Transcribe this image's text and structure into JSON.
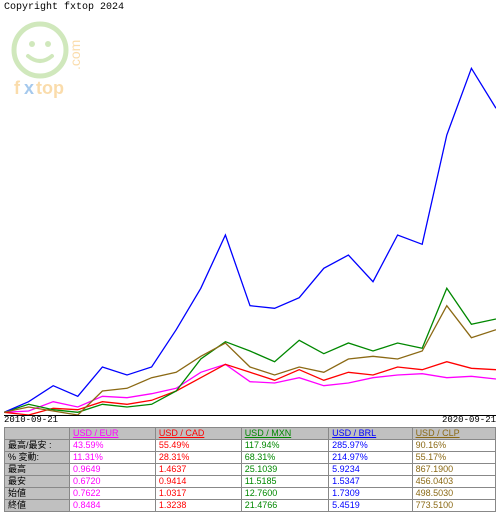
{
  "copyright": "Copyright fxtop 2024",
  "logo": {
    "text_top": "fxtop",
    "text_side": ".com",
    "face_color": "#7bc043",
    "text_color": "#f39c12"
  },
  "chart": {
    "type": "line",
    "x_start": "2010-09-21",
    "x_end": "2020-09-21",
    "background_color": "#ffffff",
    "x_range": [
      0,
      100
    ],
    "y_range": [
      0,
      300
    ],
    "series": [
      {
        "name": "USD/EUR",
        "color": "#ff00ff",
        "points": [
          [
            0,
            2
          ],
          [
            5,
            3
          ],
          [
            10,
            10
          ],
          [
            15,
            6
          ],
          [
            20,
            14
          ],
          [
            25,
            13
          ],
          [
            30,
            16
          ],
          [
            35,
            20
          ],
          [
            40,
            32
          ],
          [
            45,
            38
          ],
          [
            50,
            25
          ],
          [
            55,
            24
          ],
          [
            60,
            28
          ],
          [
            65,
            22
          ],
          [
            70,
            24
          ],
          [
            75,
            28
          ],
          [
            80,
            30
          ],
          [
            85,
            31
          ],
          [
            90,
            28
          ],
          [
            95,
            29
          ],
          [
            100,
            27
          ]
        ]
      },
      {
        "name": "USD/CAD",
        "color": "#ff0000",
        "points": [
          [
            0,
            2
          ],
          [
            5,
            0
          ],
          [
            10,
            5
          ],
          [
            15,
            4
          ],
          [
            20,
            10
          ],
          [
            25,
            8
          ],
          [
            30,
            11
          ],
          [
            35,
            18
          ],
          [
            40,
            28
          ],
          [
            45,
            38
          ],
          [
            50,
            32
          ],
          [
            55,
            26
          ],
          [
            60,
            34
          ],
          [
            65,
            26
          ],
          [
            70,
            32
          ],
          [
            75,
            30
          ],
          [
            80,
            36
          ],
          [
            85,
            34
          ],
          [
            90,
            40
          ],
          [
            95,
            35
          ],
          [
            100,
            34
          ]
        ]
      },
      {
        "name": "USD/MXN",
        "color": "#008800",
        "points": [
          [
            0,
            2
          ],
          [
            5,
            8
          ],
          [
            10,
            4
          ],
          [
            15,
            2
          ],
          [
            20,
            8
          ],
          [
            25,
            6
          ],
          [
            30,
            8
          ],
          [
            35,
            18
          ],
          [
            40,
            42
          ],
          [
            45,
            55
          ],
          [
            50,
            48
          ],
          [
            55,
            40
          ],
          [
            60,
            56
          ],
          [
            65,
            46
          ],
          [
            70,
            54
          ],
          [
            75,
            48
          ],
          [
            80,
            54
          ],
          [
            85,
            50
          ],
          [
            90,
            95
          ],
          [
            95,
            68
          ],
          [
            100,
            72
          ]
        ]
      },
      {
        "name": "USD/BRL",
        "color": "#0000ff",
        "points": [
          [
            0,
            2
          ],
          [
            5,
            10
          ],
          [
            10,
            22
          ],
          [
            15,
            14
          ],
          [
            20,
            36
          ],
          [
            25,
            30
          ],
          [
            30,
            36
          ],
          [
            35,
            64
          ],
          [
            40,
            95
          ],
          [
            45,
            135
          ],
          [
            50,
            82
          ],
          [
            55,
            80
          ],
          [
            60,
            88
          ],
          [
            65,
            110
          ],
          [
            70,
            120
          ],
          [
            75,
            100
          ],
          [
            80,
            135
          ],
          [
            85,
            128
          ],
          [
            90,
            210
          ],
          [
            95,
            260
          ],
          [
            100,
            230
          ]
        ]
      },
      {
        "name": "USD/CLP",
        "color": "#8b6914",
        "points": [
          [
            0,
            2
          ],
          [
            5,
            6
          ],
          [
            10,
            3
          ],
          [
            15,
            0
          ],
          [
            20,
            18
          ],
          [
            25,
            20
          ],
          [
            30,
            28
          ],
          [
            35,
            32
          ],
          [
            40,
            44
          ],
          [
            45,
            54
          ],
          [
            50,
            36
          ],
          [
            55,
            30
          ],
          [
            60,
            36
          ],
          [
            65,
            32
          ],
          [
            70,
            42
          ],
          [
            75,
            44
          ],
          [
            80,
            42
          ],
          [
            85,
            48
          ],
          [
            90,
            82
          ],
          [
            95,
            58
          ],
          [
            100,
            64
          ]
        ]
      }
    ]
  },
  "table": {
    "row_labels": [
      "",
      "最高/最安 :",
      "% 変動:",
      "最高",
      "最安",
      "始値",
      "終値"
    ],
    "columns": [
      {
        "header": "USD / EUR",
        "color": "#ff00ff",
        "values": [
          "43.59%",
          "11.31%",
          "0.9649",
          "0.6720",
          "0.7622",
          "0.8484"
        ]
      },
      {
        "header": "USD / CAD",
        "color": "#ff0000",
        "values": [
          "55.49%",
          "28.31%",
          "1.4637",
          "0.9414",
          "1.0317",
          "1.3238"
        ]
      },
      {
        "header": "USD / MXN",
        "color": "#008800",
        "values": [
          "117.94%",
          "68.31%",
          "25.1039",
          "11.5185",
          "12.7600",
          "21.4766"
        ]
      },
      {
        "header": "USD / BRL",
        "color": "#0000ff",
        "values": [
          "285.97%",
          "214.97%",
          "5.9234",
          "1.5347",
          "1.7309",
          "5.4519"
        ]
      },
      {
        "header": "USD / CLP",
        "color": "#8b6914",
        "values": [
          "90.16%",
          "55.17%",
          "867.1900",
          "456.0403",
          "498.5030",
          "773.5100"
        ]
      }
    ]
  }
}
